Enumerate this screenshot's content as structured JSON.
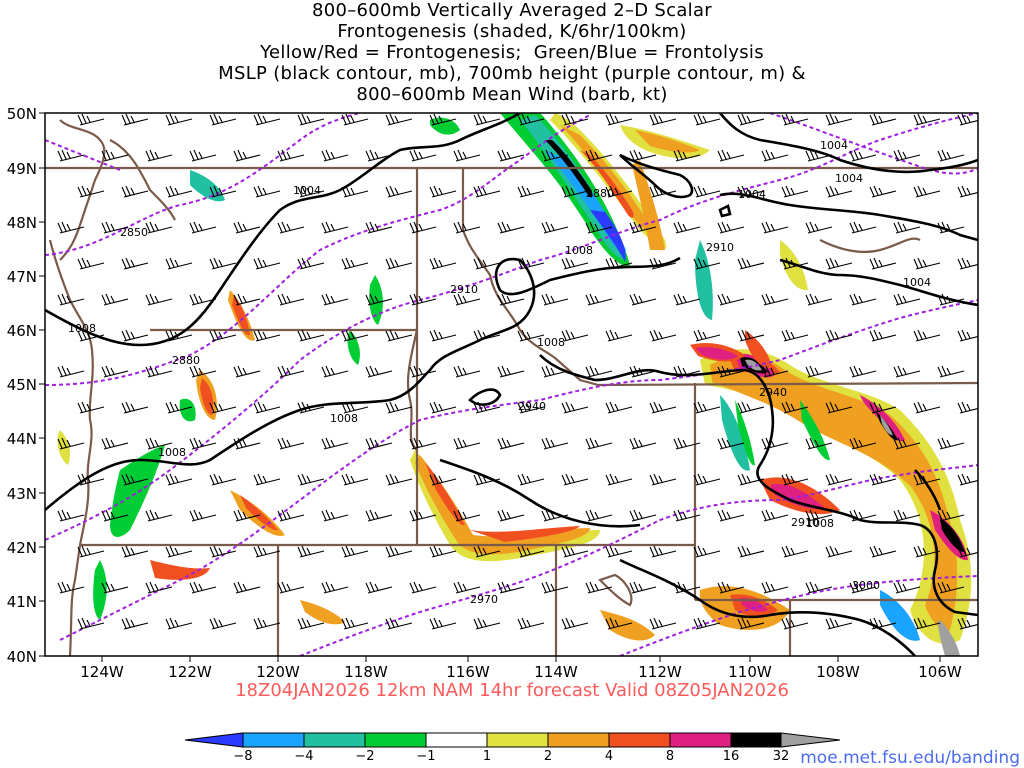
{
  "title": {
    "line1": "800–600mb Vertically Averaged 2–D Scalar",
    "line2": "Frontogenesis (shaded, K/6hr/100km)",
    "line3": "Yellow/Red = Frontogenesis;  Green/Blue = Frontolysis",
    "line4": "MSLP (black contour, mb), 700mb height (purple contour, m) &",
    "line5": "800–600mb Mean Wind (barb, kt)"
  },
  "valid_time": "18Z04JAN2026 12km NAM 14hr forecast Valid 08Z05JAN2026",
  "url": "moe.met.fsu.edu/banding",
  "axes": {
    "lat_labels": [
      "50N",
      "49N",
      "48N",
      "47N",
      "46N",
      "45N",
      "44N",
      "43N",
      "42N",
      "41N",
      "40N"
    ],
    "lon_labels": [
      "124W",
      "122W",
      "120W",
      "118W",
      "116W",
      "114W",
      "112W",
      "110W",
      "108W",
      "106W"
    ]
  },
  "colorbar": {
    "labels": [
      "−8",
      "−4",
      "−2",
      "−1",
      "1",
      "2",
      "4",
      "8",
      "16",
      "32"
    ],
    "colors": [
      "#2b3bff",
      "#1aa3ff",
      "#20c0a0",
      "#00cc33",
      "#ffffff",
      "#e0e040",
      "#f0a020",
      "#f05020",
      "#e02080",
      "#000000",
      "#a0a0a0"
    ]
  },
  "contour_labels": {
    "mslp": [
      "1004",
      "1004",
      "1004",
      "1004",
      "1004",
      "1008",
      "1008",
      "1008",
      "1008",
      "1008",
      "1008"
    ],
    "height": [
      "2850",
      "2880",
      "2910",
      "2910",
      "2940",
      "2940",
      "2970",
      "3000",
      "2880",
      "2910"
    ]
  },
  "colors": {
    "mslp": "#000000",
    "height": "#a020e0",
    "borders": "#7a5a48",
    "valid_text": "#ff5a5a",
    "url_text": "#4a6cf0"
  }
}
